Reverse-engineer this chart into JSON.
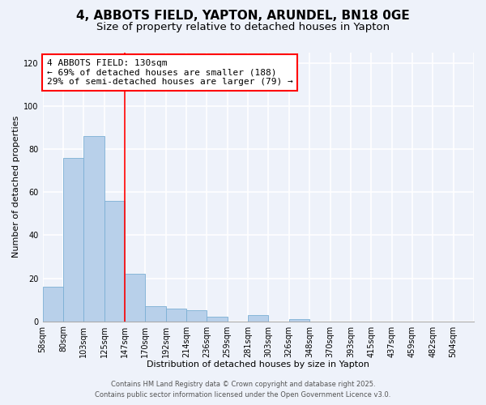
{
  "title": "4, ABBOTS FIELD, YAPTON, ARUNDEL, BN18 0GE",
  "subtitle": "Size of property relative to detached houses in Yapton",
  "xlabel": "Distribution of detached houses by size in Yapton",
  "ylabel": "Number of detached properties",
  "bar_values": [
    16,
    76,
    86,
    56,
    22,
    7,
    6,
    5,
    2,
    0,
    3,
    0,
    1,
    0,
    0,
    0,
    0,
    0,
    0,
    0,
    0
  ],
  "bar_labels": [
    "58sqm",
    "80sqm",
    "103sqm",
    "125sqm",
    "147sqm",
    "170sqm",
    "192sqm",
    "214sqm",
    "236sqm",
    "259sqm",
    "281sqm",
    "303sqm",
    "326sqm",
    "348sqm",
    "370sqm",
    "393sqm",
    "415sqm",
    "437sqm",
    "459sqm",
    "482sqm",
    "504sqm"
  ],
  "bar_color": "#b8d0ea",
  "bar_edge_color": "#7bafd4",
  "bar_edge_width": 0.6,
  "vline_x": 3,
  "vline_color": "red",
  "vline_linewidth": 1.2,
  "annotation_title": "4 ABBOTS FIELD: 130sqm",
  "annotation_line1": "← 69% of detached houses are smaller (188)",
  "annotation_line2": "29% of semi-detached houses are larger (79) →",
  "annotation_box_color": "white",
  "annotation_box_edge": "red",
  "ylim": [
    0,
    125
  ],
  "yticks": [
    0,
    20,
    40,
    60,
    80,
    100,
    120
  ],
  "footer1": "Contains HM Land Registry data © Crown copyright and database right 2025.",
  "footer2": "Contains public sector information licensed under the Open Government Licence v3.0.",
  "background_color": "#eef2fa",
  "grid_color": "white",
  "title_fontsize": 11,
  "subtitle_fontsize": 9.5,
  "axis_label_fontsize": 8,
  "tick_fontsize": 7,
  "annotation_fontsize": 8,
  "footer_fontsize": 6
}
